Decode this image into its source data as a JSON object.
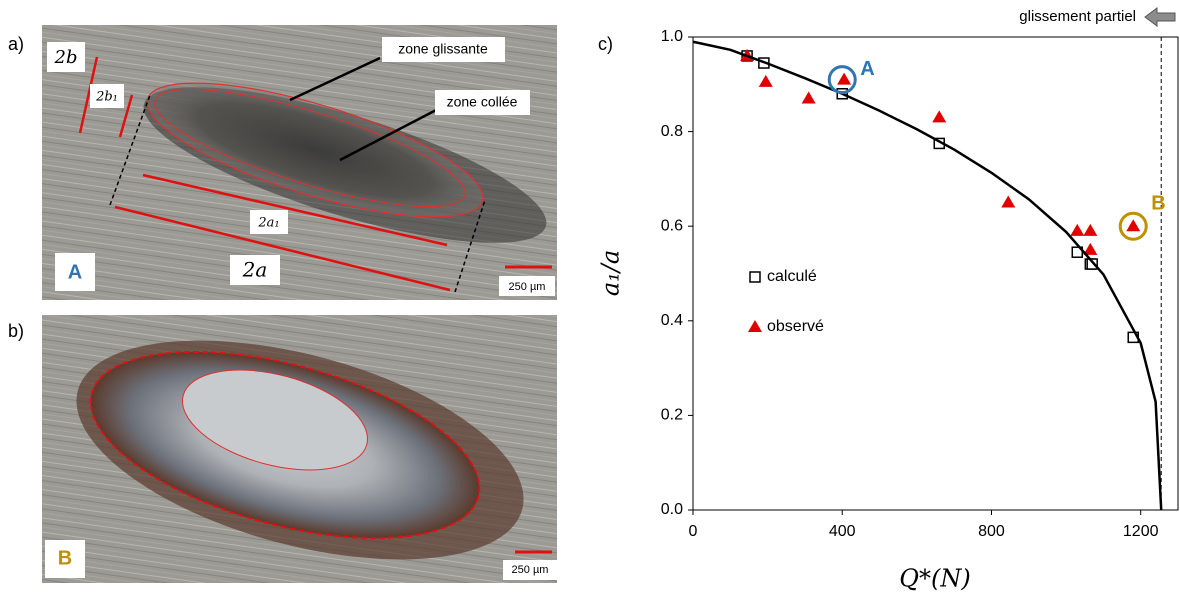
{
  "panels": [
    {
      "label": "a)",
      "marker": "A",
      "scale_bar": "250 µm",
      "callouts": [
        "zone glissante",
        "zone collée"
      ],
      "dimensions": [
        "2b",
        "2b₁",
        "2a₁",
        "2a"
      ]
    },
    {
      "label": "b)",
      "marker": "B",
      "scale_bar": "250 µm"
    }
  ],
  "chart_data": {
    "type": "scatter",
    "panel_label": "c)",
    "x_label": "Q*(N)",
    "y_label": "a₁/a",
    "xlim": [
      0,
      1300
    ],
    "ylim": [
      0,
      1
    ],
    "xticks": [
      0,
      400,
      800,
      1200
    ],
    "yticks": [
      {
        "value": 0,
        "label": "0.0"
      },
      {
        "value": 0.2,
        "label": "0.2"
      },
      {
        "value": 0.4,
        "label": "0.4"
      },
      {
        "value": 0.6,
        "label": "0.6"
      },
      {
        "value": 0.8,
        "label": "0.8"
      },
      {
        "value": 1,
        "label": "1.0"
      }
    ],
    "legend": "center-left",
    "series": [
      {
        "name": "calculé",
        "marker": "square",
        "color": "#000000",
        "x": [
          145,
          190,
          400,
          660,
          1030,
          1065,
          1070,
          1180
        ],
        "values": [
          0.96,
          0.945,
          0.88,
          0.775,
          0.545,
          0.52,
          0.52,
          0.365
        ]
      },
      {
        "name": "observé",
        "marker": "triangle",
        "color": "#e00000",
        "x": [
          145,
          195,
          310,
          405,
          660,
          845,
          1030,
          1065,
          1065,
          1180
        ],
        "values": [
          0.96,
          0.905,
          0.87,
          0.91,
          0.83,
          0.65,
          0.59,
          0.59,
          0.55,
          0.6
        ]
      },
      {
        "marker": "line",
        "color": "#000000",
        "x": [
          0,
          100,
          200,
          300,
          400,
          500,
          600,
          700,
          800,
          900,
          1000,
          1100,
          1200,
          1240,
          1255
        ],
        "values": [
          0.99,
          0.973,
          0.944,
          0.913,
          0.88,
          0.844,
          0.805,
          0.762,
          0.713,
          0.657,
          0.588,
          0.498,
          0.353,
          0.229,
          0
        ]
      }
    ],
    "reference_x": 1255,
    "reference_label": "glissement partiel",
    "annotations": [
      {
        "text": "A",
        "x": 400,
        "y": 0.91,
        "color": "#2e75b6"
      },
      {
        "text": "B",
        "x": 1180,
        "y": 0.6,
        "color": "#bf9000"
      }
    ]
  }
}
